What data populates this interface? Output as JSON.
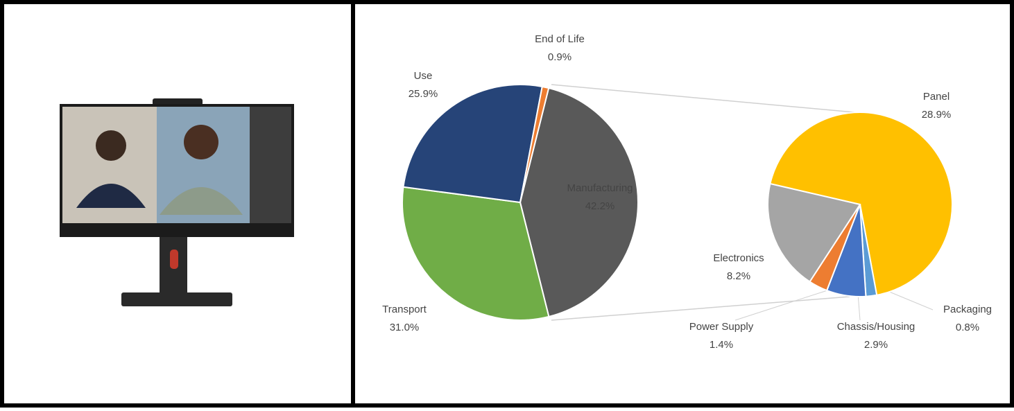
{
  "chart_data": [
    {
      "type": "pie",
      "categories": [
        "Manufacturing",
        "Transport",
        "Use",
        "End of Life"
      ],
      "values": [
        42.2,
        31.0,
        25.9,
        0.9
      ],
      "value_labels": [
        "42.2%",
        "31.0%",
        "25.9%",
        "0.9%"
      ],
      "colors": [
        "#595959",
        "#70ad47",
        "#264478",
        "#ed7d31"
      ]
    },
    {
      "type": "pie",
      "categories": [
        "Panel",
        "Packaging",
        "Chassis/Housing",
        "Power Supply",
        "Electronics"
      ],
      "values": [
        28.9,
        0.8,
        2.9,
        1.4,
        8.2
      ],
      "value_labels": [
        "28.9%",
        "0.8%",
        "2.9%",
        "1.4%",
        "8.2%"
      ],
      "colors": [
        "#ffc000",
        "#5b9bd5",
        "#4472c4",
        "#ed7d31",
        "#a5a5a5"
      ]
    }
  ]
}
